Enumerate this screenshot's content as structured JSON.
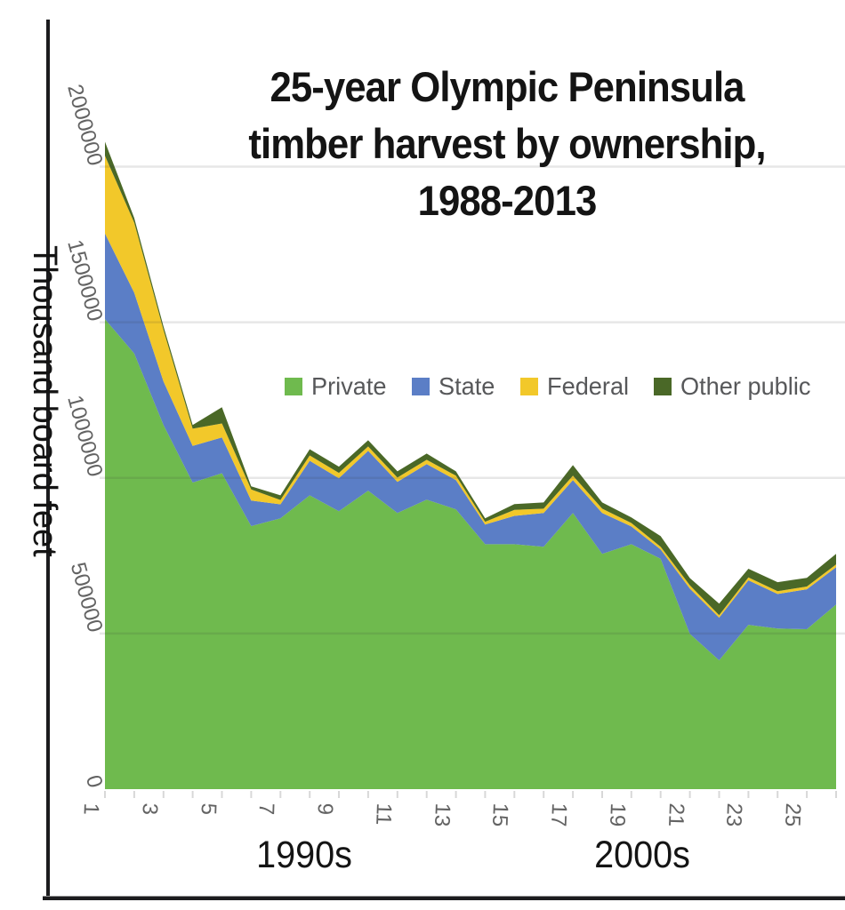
{
  "chart_data": {
    "type": "area",
    "stacked": true,
    "title": "25-year Olympic Peninsula timber harvest by ownership, 1988-2013",
    "title_lines": [
      "25-year Olympic Peninsula",
      "timber harvest by ownership,",
      "1988-2013"
    ],
    "ylabel": "Thousand board feet",
    "xlabel": "",
    "x": [
      1,
      2,
      3,
      4,
      5,
      6,
      7,
      8,
      9,
      10,
      11,
      12,
      13,
      14,
      15,
      16,
      17,
      18,
      19,
      20,
      21,
      22,
      23,
      24,
      25,
      26
    ],
    "x_major_tick_labels": [
      "1",
      "3",
      "5",
      "7",
      "9",
      "11",
      "13",
      "15",
      "17",
      "19",
      "21",
      "23",
      "25"
    ],
    "x_axis_annotations": [
      "1990s",
      "2000s"
    ],
    "y_ticks": [
      0,
      500000,
      1000000,
      1500000,
      2000000
    ],
    "y_tick_labels": [
      "0",
      "500000",
      "1000000",
      "1500000",
      "2000000"
    ],
    "ylim": [
      0,
      2050000
    ],
    "grid": true,
    "legend_position": "inside-top-center",
    "series": [
      {
        "name": "Private",
        "color": "#6FBA4E",
        "values": [
          1510000,
          1400000,
          1170000,
          985000,
          1015000,
          845000,
          870000,
          944000,
          893000,
          959000,
          887000,
          930000,
          899000,
          787000,
          787000,
          779000,
          887000,
          756000,
          787000,
          740000,
          499000,
          414000,
          528000,
          516000,
          514000,
          593000
        ]
      },
      {
        "name": "State",
        "color": "#5B7EC6",
        "values": [
          275000,
          195000,
          140000,
          118000,
          115000,
          82000,
          45000,
          111000,
          106000,
          128000,
          100000,
          114000,
          94000,
          63000,
          91000,
          108000,
          106000,
          131000,
          57000,
          30000,
          145000,
          137000,
          143000,
          111000,
          128000,
          120000
        ]
      },
      {
        "name": "Federal",
        "color": "#F2C82A",
        "values": [
          250000,
          225000,
          165000,
          55000,
          45000,
          36000,
          14000,
          17000,
          17000,
          14000,
          14000,
          14000,
          14000,
          9000,
          19000,
          14000,
          14000,
          14000,
          11000,
          9000,
          11000,
          8000,
          9000,
          9000,
          9000,
          9000
        ]
      },
      {
        "name": "Other public",
        "color": "#4A6827",
        "values": [
          45000,
          15000,
          12000,
          12000,
          52000,
          10000,
          15000,
          20000,
          20000,
          20000,
          20000,
          20000,
          14000,
          11000,
          19000,
          20000,
          34000,
          20000,
          18000,
          34000,
          23000,
          37000,
          28000,
          29000,
          28000,
          34000
        ]
      }
    ]
  },
  "legend": {
    "items": [
      {
        "label": "Private",
        "color": "#6FBA4E"
      },
      {
        "label": "State",
        "color": "#5B7EC6"
      },
      {
        "label": "Federal",
        "color": "#F2C82A"
      },
      {
        "label": "Other public",
        "color": "#4A6827"
      }
    ]
  },
  "colors": {
    "gridline": "rgba(60,60,60,0.12)",
    "tick_mark": "#d8d8d8",
    "tick_text": "#636363",
    "legend_text": "#57585a",
    "frame": "#1c1c1e"
  }
}
